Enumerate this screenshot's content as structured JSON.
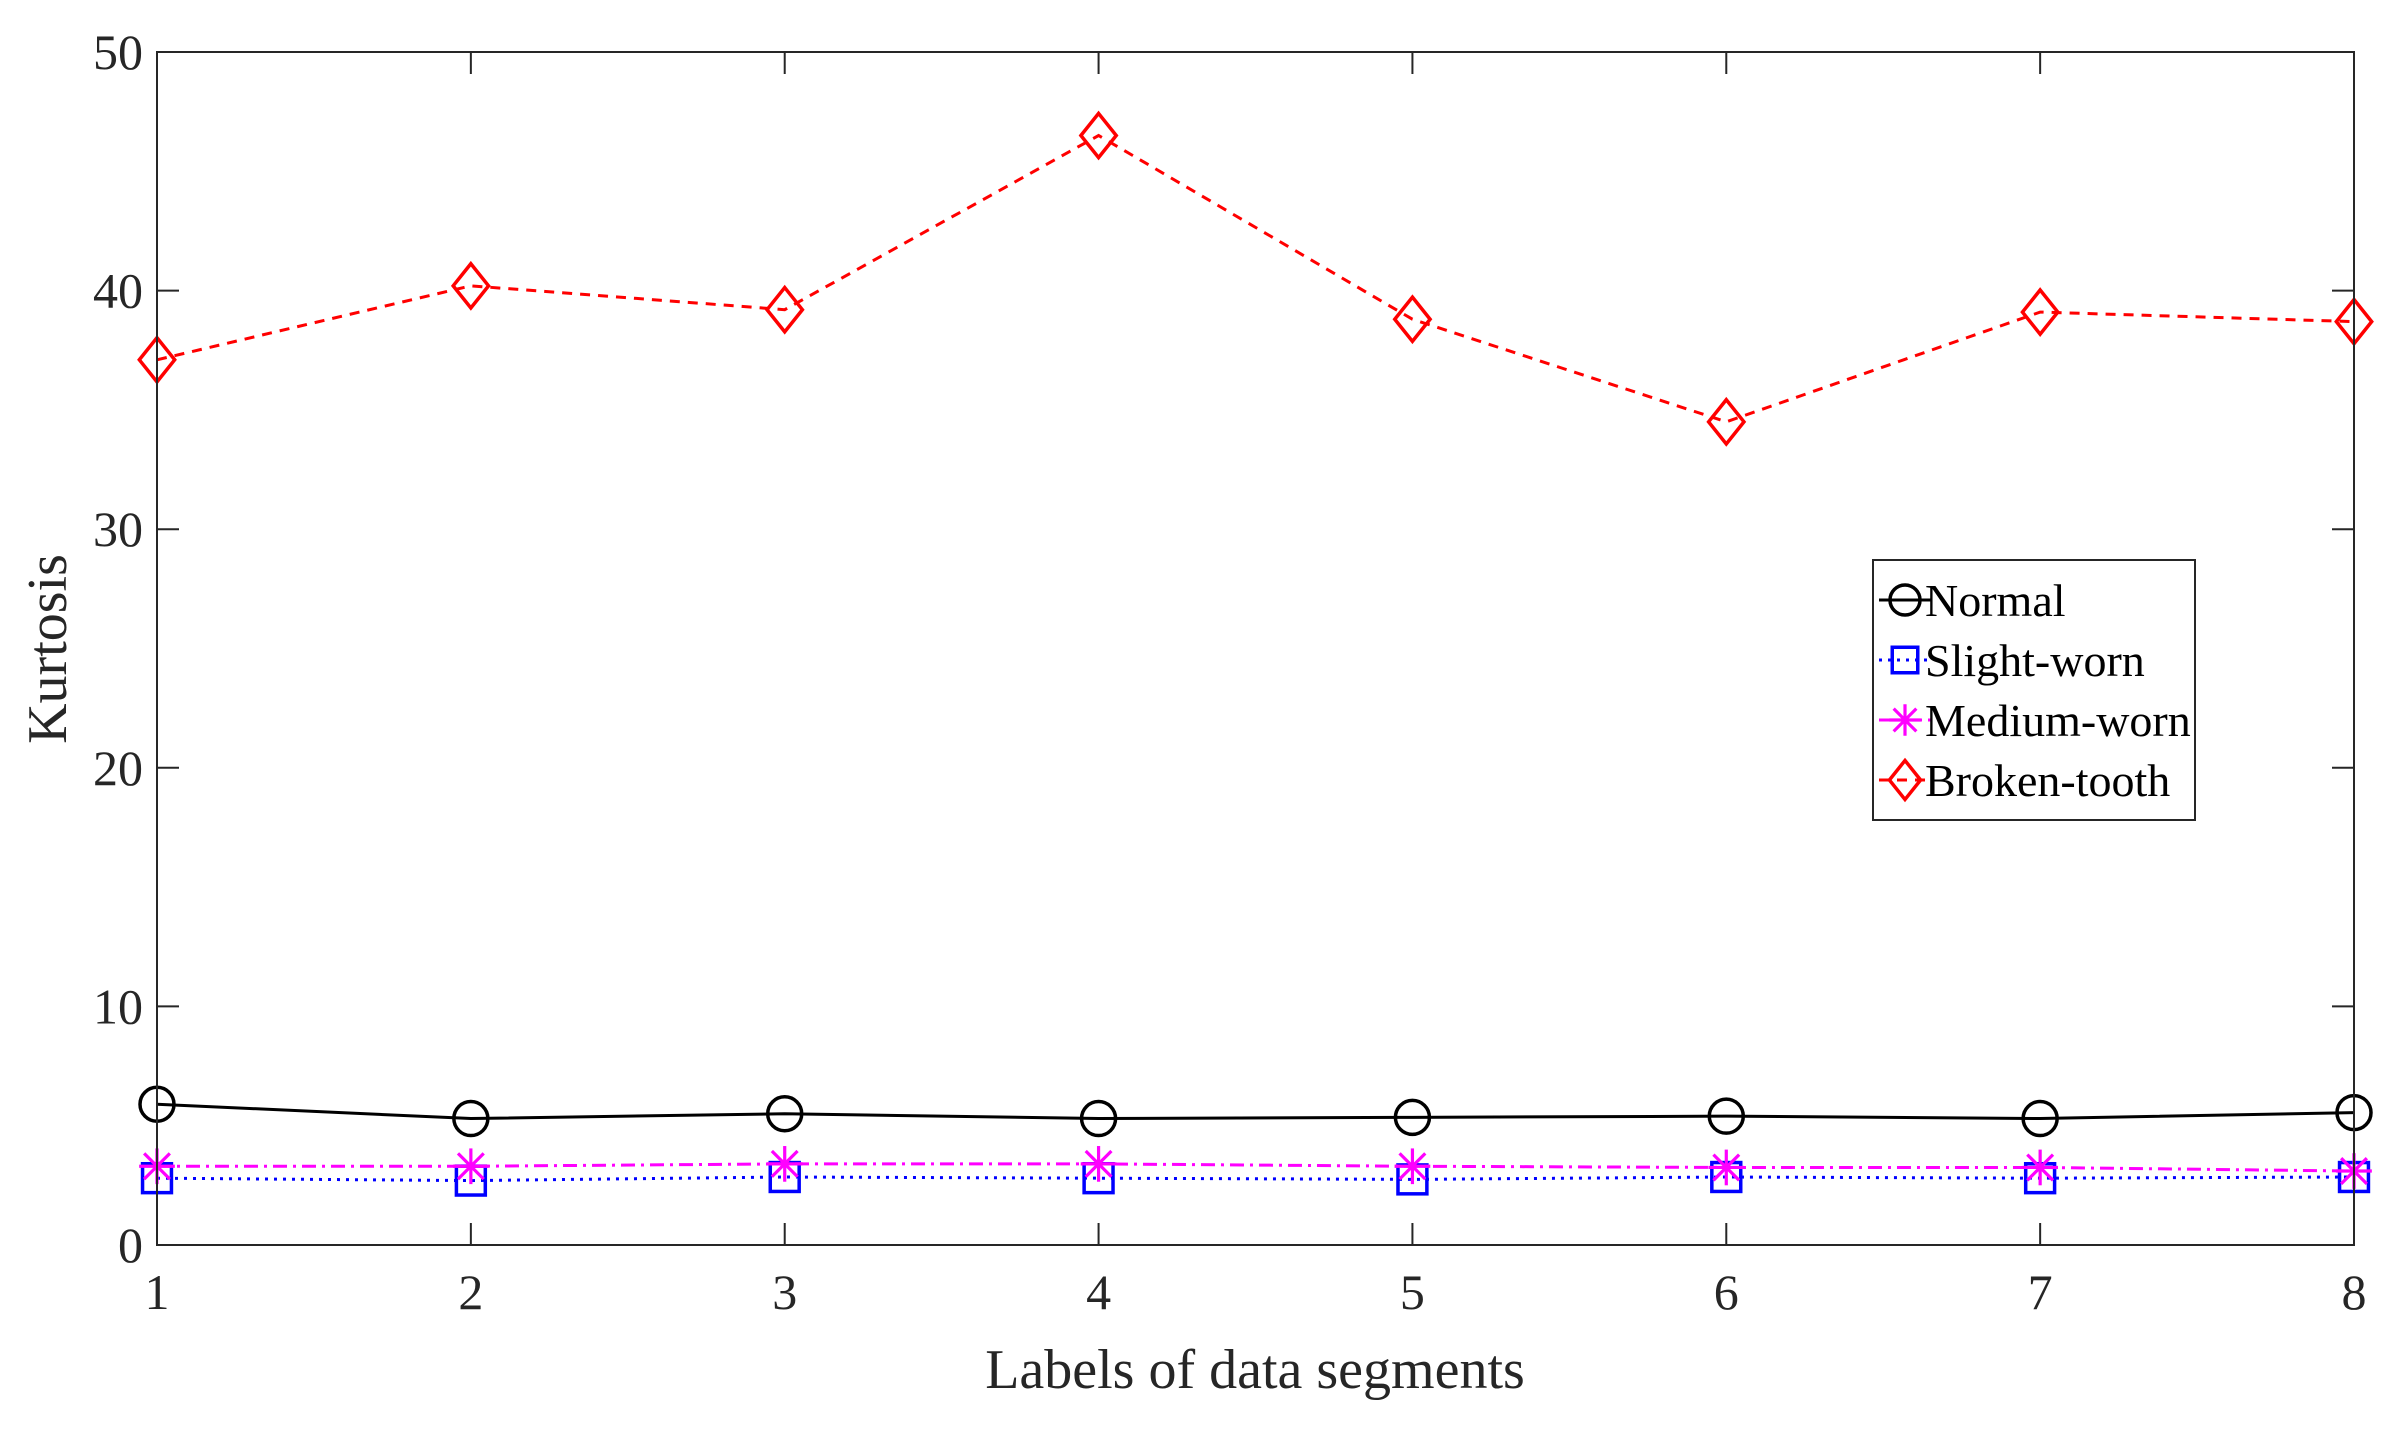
{
  "chart_data": {
    "type": "line",
    "title": "",
    "xlabel": "Labels of data segments",
    "ylabel": "Kurtosis",
    "xlim": [
      1,
      8
    ],
    "ylim": [
      0,
      50
    ],
    "x": [
      1,
      2,
      3,
      4,
      5,
      6,
      7,
      8
    ],
    "xticks": [
      1,
      2,
      3,
      4,
      5,
      6,
      7,
      8
    ],
    "yticks": [
      0,
      10,
      20,
      30,
      40,
      50
    ],
    "legend_position": "center-right",
    "series": [
      {
        "name": "Normal",
        "color": "#000000",
        "marker": "circle",
        "line_style": "solid",
        "values": [
          5.9,
          5.3,
          5.5,
          5.3,
          5.35,
          5.4,
          5.3,
          5.55
        ]
      },
      {
        "name": "Slight-worn",
        "color": "#0000ff",
        "marker": "square",
        "line_style": "dotted",
        "values": [
          2.8,
          2.7,
          2.85,
          2.8,
          2.75,
          2.85,
          2.8,
          2.85
        ]
      },
      {
        "name": "Medium-worn",
        "color": "#ff00ff",
        "marker": "asterisk",
        "line_style": "dashdot",
        "values": [
          3.3,
          3.3,
          3.4,
          3.4,
          3.3,
          3.25,
          3.25,
          3.1
        ]
      },
      {
        "name": "Broken-tooth",
        "color": "#ff0000",
        "marker": "diamond",
        "line_style": "dashed",
        "values": [
          37.1,
          40.2,
          39.2,
          46.5,
          38.8,
          34.5,
          39.1,
          38.7
        ]
      }
    ]
  }
}
